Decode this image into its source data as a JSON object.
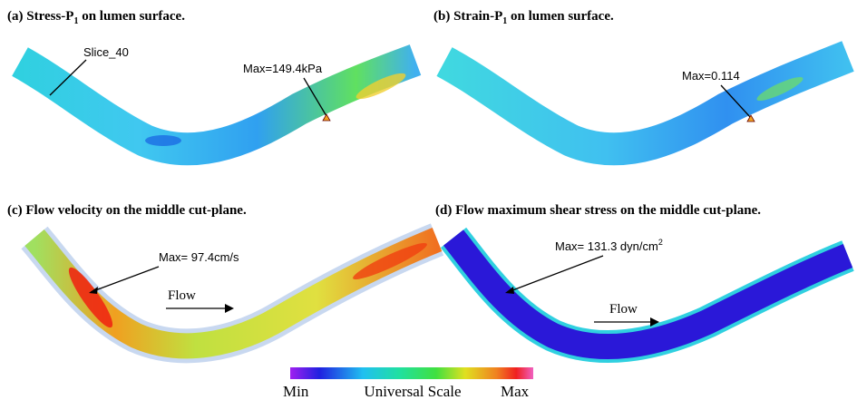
{
  "panels": [
    {
      "caption": {
        "before": "(a) Stress-P",
        "sub": "1",
        "after": " on lumen surface."
      },
      "slice_label": "Slice_40",
      "max_label": "Max=149.4kPa"
    },
    {
      "caption": {
        "before": "(b) Strain-P",
        "sub": "1",
        "after": " on lumen surface."
      },
      "max_label": "Max=0.114"
    },
    {
      "caption": {
        "before": "(c) Flow velocity on the middle cut-plane."
      },
      "max_label": {
        "before": "Max= 97.4cm/s"
      },
      "flow_label": "Flow"
    },
    {
      "caption": {
        "before": "(d) Flow maximum shear stress on the middle cut-plane."
      },
      "max_label": {
        "before": "Max= 131.3 dyn/cm",
        "sup": "2"
      },
      "flow_label": "Flow"
    }
  ],
  "colorbar": {
    "min": "Min",
    "title": "Universal Scale",
    "max": "Max"
  }
}
